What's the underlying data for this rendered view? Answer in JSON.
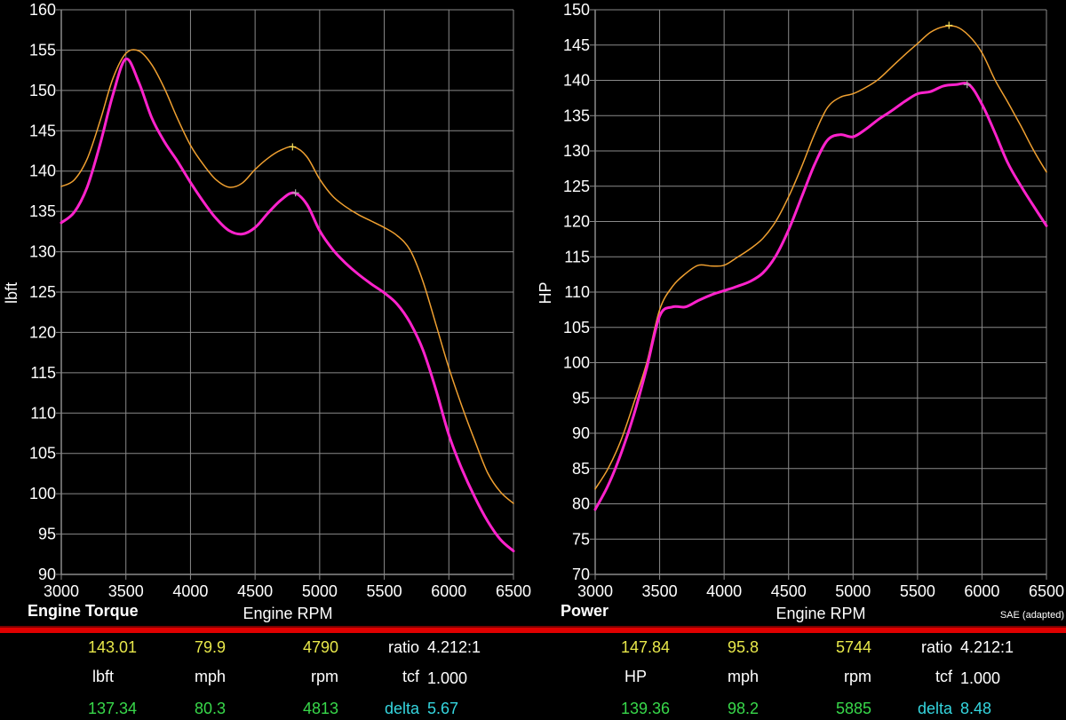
{
  "chart_data": [
    {
      "type": "line",
      "title": "Engine Torque",
      "xlabel": "Engine RPM",
      "ylabel": "lbft",
      "xlim": [
        3000,
        6500
      ],
      "ylim": [
        90,
        160
      ],
      "x_ticks": [
        3000,
        3500,
        4000,
        4500,
        5000,
        5500,
        6000,
        6500
      ],
      "y_ticks": [
        90,
        95,
        100,
        105,
        110,
        115,
        120,
        125,
        130,
        135,
        140,
        145,
        150,
        155,
        160
      ],
      "grid": true,
      "series": [
        {
          "color": "#f0a030",
          "width": 1.5,
          "x": [
            3000,
            3100,
            3200,
            3300,
            3400,
            3500,
            3600,
            3700,
            3800,
            3900,
            4000,
            4100,
            4200,
            4300,
            4400,
            4500,
            4600,
            4700,
            4800,
            4900,
            5000,
            5100,
            5200,
            5300,
            5400,
            5500,
            5600,
            5700,
            5800,
            5900,
            6000,
            6100,
            6200,
            6300,
            6400,
            6500
          ],
          "y": [
            138.1,
            138.9,
            141.5,
            146.2,
            151.5,
            154.6,
            154.9,
            153.2,
            150.2,
            146.5,
            143.2,
            140.8,
            138.9,
            138.0,
            138.5,
            140.2,
            141.6,
            142.6,
            143.0,
            141.8,
            139.0,
            136.9,
            135.6,
            134.6,
            133.8,
            133.0,
            132.0,
            130.2,
            126.3,
            121.0,
            115.6,
            110.9,
            106.6,
            102.6,
            100.2,
            98.8
          ],
          "marker": {
            "x": 4790,
            "y": 143.0
          }
        },
        {
          "color": "#ff22cc",
          "width": 3,
          "x": [
            3000,
            3100,
            3200,
            3300,
            3400,
            3500,
            3600,
            3700,
            3800,
            3900,
            4000,
            4100,
            4200,
            4300,
            4400,
            4500,
            4600,
            4700,
            4800,
            4900,
            5000,
            5100,
            5200,
            5300,
            5400,
            5500,
            5600,
            5700,
            5800,
            5900,
            6000,
            6100,
            6200,
            6300,
            6400,
            6500
          ],
          "y": [
            133.6,
            134.9,
            138.0,
            143.3,
            149.5,
            153.9,
            151.0,
            146.6,
            143.6,
            141.2,
            138.6,
            136.2,
            134.1,
            132.6,
            132.2,
            133.0,
            134.8,
            136.4,
            137.3,
            135.9,
            132.6,
            130.3,
            128.6,
            127.2,
            126.0,
            124.9,
            123.5,
            121.2,
            117.8,
            112.9,
            107.3,
            103.1,
            99.6,
            96.6,
            94.3,
            92.9
          ],
          "marker": {
            "x": 4813,
            "y": 137.3
          }
        }
      ]
    },
    {
      "type": "line",
      "title": "Power",
      "xlabel": "Engine RPM",
      "ylabel": "HP",
      "note": "SAE (adapted)",
      "xlim": [
        3000,
        6500
      ],
      "ylim": [
        70,
        150
      ],
      "x_ticks": [
        3000,
        3500,
        4000,
        4500,
        5000,
        5500,
        6000,
        6500
      ],
      "y_ticks": [
        70,
        75,
        80,
        85,
        90,
        95,
        100,
        105,
        110,
        115,
        120,
        125,
        130,
        135,
        140,
        145,
        150
      ],
      "grid": true,
      "series": [
        {
          "color": "#f0a030",
          "width": 1.5,
          "x": [
            3000,
            3100,
            3200,
            3300,
            3400,
            3500,
            3600,
            3700,
            3800,
            3900,
            4000,
            4100,
            4200,
            4300,
            4400,
            4500,
            4600,
            4700,
            4800,
            4900,
            5000,
            5100,
            5200,
            5300,
            5400,
            5500,
            5600,
            5700,
            5800,
            5900,
            6000,
            6100,
            6200,
            6300,
            6400,
            6500
          ],
          "y": [
            82.1,
            85.0,
            89.0,
            94.3,
            100.0,
            107.5,
            110.8,
            112.6,
            113.8,
            113.7,
            113.8,
            114.9,
            116.1,
            117.6,
            120.0,
            123.5,
            127.7,
            132.3,
            136.1,
            137.6,
            138.1,
            139.0,
            140.2,
            141.9,
            143.6,
            145.2,
            146.8,
            147.6,
            147.6,
            146.3,
            143.9,
            140.1,
            136.9,
            133.6,
            130.1,
            127.0
          ],
          "marker": {
            "x": 5744,
            "y": 147.8
          }
        },
        {
          "color": "#ff22cc",
          "width": 3,
          "x": [
            3000,
            3100,
            3200,
            3300,
            3400,
            3500,
            3600,
            3700,
            3800,
            3900,
            4000,
            4100,
            4200,
            4300,
            4400,
            4500,
            4600,
            4700,
            4800,
            4900,
            5000,
            5100,
            5200,
            5300,
            5400,
            5500,
            5600,
            5700,
            5800,
            5900,
            6000,
            6100,
            6200,
            6300,
            6400,
            6500
          ],
          "y": [
            79.2,
            82.6,
            87.1,
            92.6,
            99.3,
            106.6,
            107.9,
            107.9,
            108.8,
            109.6,
            110.2,
            110.8,
            111.5,
            112.7,
            115.1,
            118.8,
            123.4,
            128.0,
            131.5,
            132.3,
            132.0,
            133.1,
            134.5,
            135.7,
            137.0,
            138.1,
            138.4,
            139.2,
            139.4,
            139.4,
            136.6,
            132.6,
            128.3,
            125.1,
            122.2,
            119.4
          ],
          "marker": {
            "x": 5885,
            "y": 139.4
          }
        }
      ]
    }
  ],
  "readouts": [
    {
      "row1": {
        "a": "143.01",
        "b": "79.9",
        "c": "4790",
        "k": "ratio",
        "v": "4.212:1"
      },
      "row2": {
        "a": "lbft",
        "b": "mph",
        "c": "rpm",
        "k": "tcf",
        "v": "1.000"
      },
      "row3": {
        "a": "137.34",
        "b": "80.3",
        "c": "4813",
        "k": "delta",
        "v": "5.67"
      }
    },
    {
      "row1": {
        "a": "147.84",
        "b": "95.8",
        "c": "5744",
        "k": "ratio",
        "v": "4.212:1"
      },
      "row2": {
        "a": "HP",
        "b": "mph",
        "c": "rpm",
        "k": "tcf",
        "v": "1.000"
      },
      "row3": {
        "a": "139.36",
        "b": "98.2",
        "c": "5885",
        "k": "delta",
        "v": "8.48"
      }
    }
  ],
  "colors": {
    "background": "#000000",
    "grid": "#8a8a8a",
    "run_a": "#f0a030",
    "run_b": "#ff22cc",
    "readout_yellow": "#e8e84a",
    "readout_green": "#38d84a",
    "readout_cyan": "#35d6df",
    "separator": "#e00000"
  }
}
